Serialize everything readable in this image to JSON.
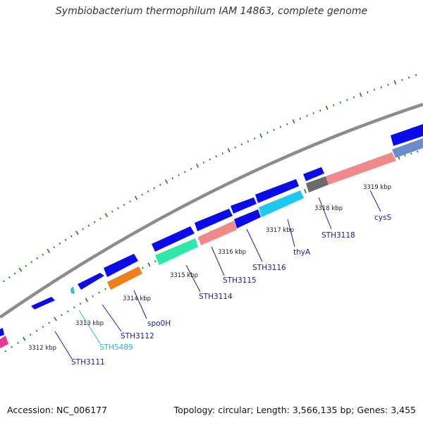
{
  "title": "Symbiobacterium thermophilum IAM 14863, complete genome",
  "footer": {
    "accession": "Accession: NC_006177",
    "summary": "Topology: circular; Length: 3,566,135 bp; Genes: 3,455"
  },
  "colors": {
    "backbone": "#8c8c8c",
    "ticks": "#1e7a1e",
    "gene_default": "#0a0aee",
    "label_default": "#1a1aa8"
  },
  "scale_labels": [
    "3312 kbp",
    "3313 kbp",
    "3314 kbp",
    "3315 kbp",
    "3316 kbp",
    "3317 kbp",
    "3318 kbp",
    "3319 kbp"
  ],
  "gene_labels": [
    {
      "name": "STH3111",
      "color": "#1a1aa8"
    },
    {
      "name": "STH5489",
      "color": "#2fb0d8"
    },
    {
      "name": "STH3112",
      "color": "#1a1aa8"
    },
    {
      "name": "spo0H",
      "color": "#1a1aa8"
    },
    {
      "name": "STH3114",
      "color": "#1a1aa8"
    },
    {
      "name": "STH3115",
      "color": "#1a1aa8"
    },
    {
      "name": "STH3116",
      "color": "#1a1aa8"
    },
    {
      "name": "thyA",
      "color": "#1a1aa8"
    },
    {
      "name": "STH3118",
      "color": "#1a1aa8"
    },
    {
      "name": "cysS",
      "color": "#1a1aa8"
    }
  ]
}
